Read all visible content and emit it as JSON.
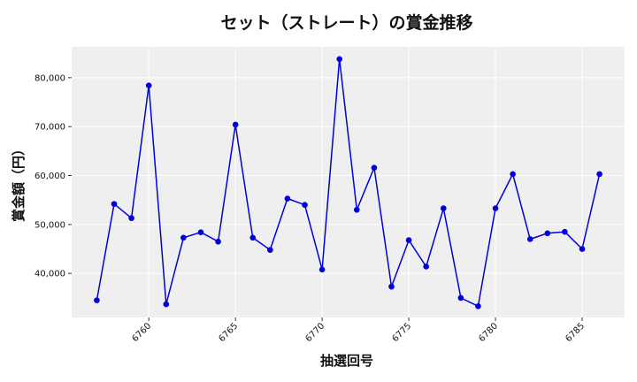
{
  "chart_data": {
    "type": "line",
    "title": "セット（ストレート）の賞金推移",
    "xlabel": "抽選回号",
    "ylabel": "賞金額（円）",
    "x": [
      6757,
      6758,
      6759,
      6760,
      6761,
      6762,
      6763,
      6764,
      6765,
      6766,
      6767,
      6768,
      6769,
      6770,
      6771,
      6772,
      6773,
      6774,
      6775,
      6776,
      6777,
      6778,
      6779,
      6780,
      6781,
      6782,
      6783,
      6784,
      6785,
      6786
    ],
    "series": [
      {
        "color": "#0000dd",
        "values": [
          34500,
          54200,
          51300,
          78400,
          33700,
          47300,
          48400,
          46500,
          70400,
          47300,
          44800,
          55300,
          54000,
          40800,
          83800,
          53000,
          61600,
          37300,
          46800,
          41400,
          53300,
          35000,
          33300,
          53300,
          60300,
          47000,
          48200,
          48500,
          45000,
          60300
        ]
      }
    ],
    "xlim": [
      6755.55,
      6787.45
    ],
    "ylim": [
      31000,
      86300
    ],
    "xticks": [
      6760,
      6765,
      6770,
      6775,
      6780,
      6785
    ],
    "yticks": [
      40000,
      50000,
      60000,
      70000,
      80000
    ],
    "ytick_labels": [
      "40,000",
      "50,000",
      "60,000",
      "70,000",
      "80,000"
    ],
    "grid": true,
    "plot_background": "#efefef",
    "grid_color": "#ffffff"
  }
}
